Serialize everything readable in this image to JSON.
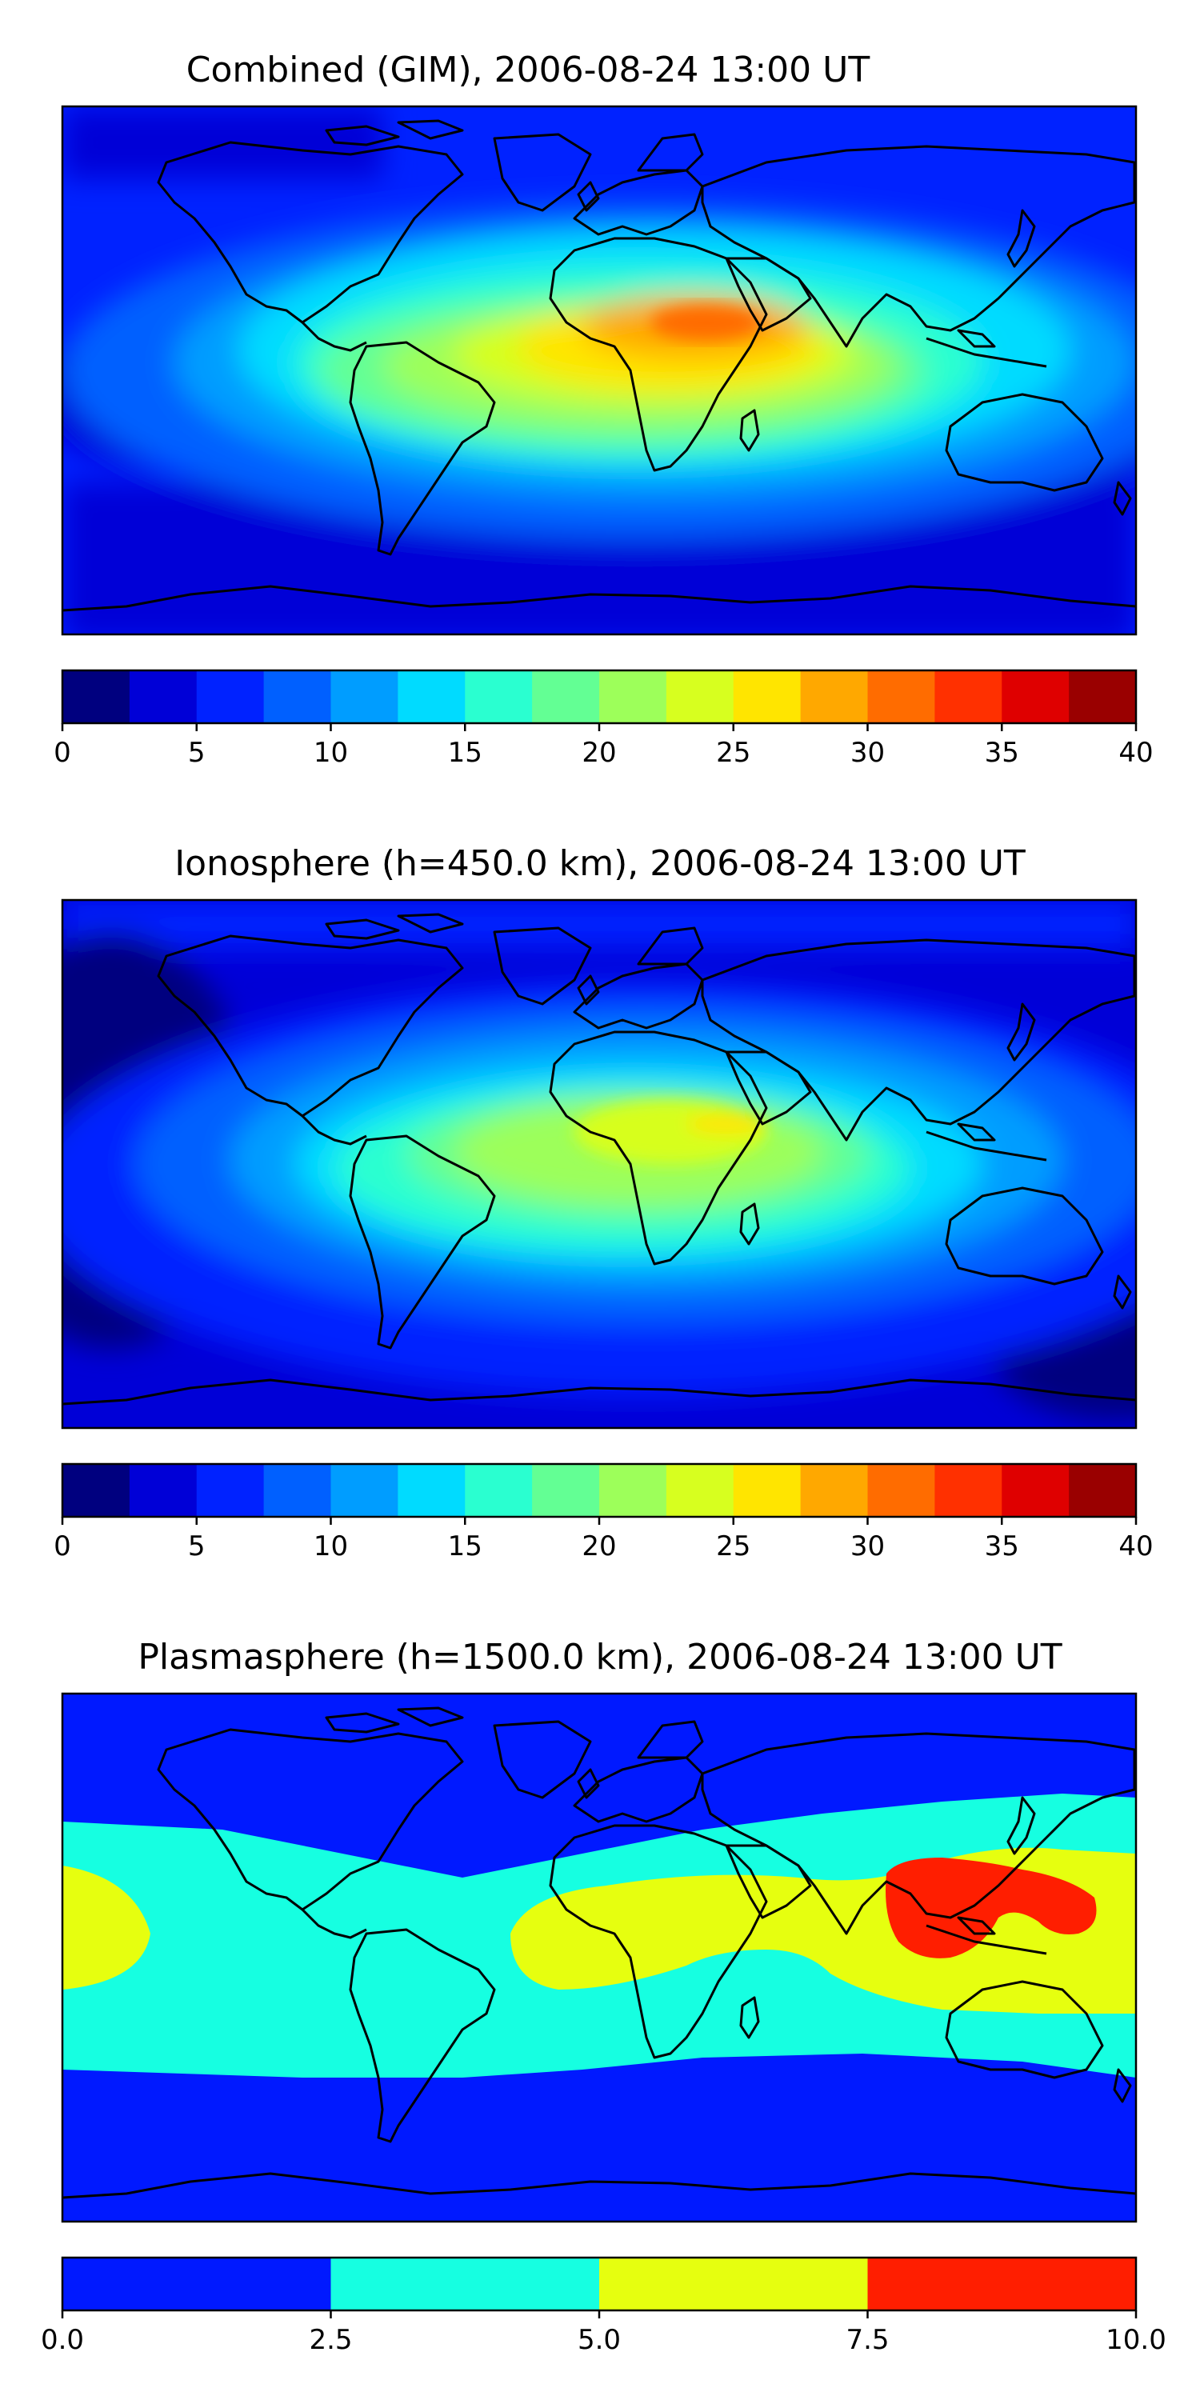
{
  "panels": [
    {
      "title": "Combined (GIM), 2006-08-24 13:00 UT",
      "colorbar": {
        "levels": [
          0,
          2.5,
          5,
          7.5,
          10,
          12.5,
          15,
          17.5,
          20,
          22.5,
          25,
          27.5,
          30,
          32.5,
          35,
          37.5,
          40
        ],
        "colors": [
          "#00007f",
          "#0000d7",
          "#0022ff",
          "#0060ff",
          "#009dff",
          "#00dbff",
          "#2affd0",
          "#63ff94",
          "#9dff5a",
          "#d7ff1f",
          "#ffe500",
          "#ffa800",
          "#ff6c00",
          "#ff3000",
          "#df0000",
          "#9a0000"
        ],
        "tick_values": [
          0,
          5,
          10,
          15,
          20,
          25,
          30,
          35,
          40
        ],
        "tick_labels": [
          "0",
          "5",
          "10",
          "15",
          "20",
          "25",
          "30",
          "35",
          "40"
        ]
      }
    },
    {
      "title": "Ionosphere  (h=450.0 km), 2006-08-24 13:00 UT",
      "colorbar": {
        "levels": [
          0,
          2.5,
          5,
          7.5,
          10,
          12.5,
          15,
          17.5,
          20,
          22.5,
          25,
          27.5,
          30,
          32.5,
          35,
          37.5,
          40
        ],
        "colors": [
          "#00007f",
          "#0000d7",
          "#0022ff",
          "#0060ff",
          "#009dff",
          "#00dbff",
          "#2affd0",
          "#63ff94",
          "#9dff5a",
          "#d7ff1f",
          "#ffe500",
          "#ffa800",
          "#ff6c00",
          "#ff3000",
          "#df0000",
          "#9a0000"
        ],
        "tick_values": [
          0,
          5,
          10,
          15,
          20,
          25,
          30,
          35,
          40
        ],
        "tick_labels": [
          "0",
          "5",
          "10",
          "15",
          "20",
          "25",
          "30",
          "35",
          "40"
        ]
      }
    },
    {
      "title": "Plasmasphere (h=1500.0 km), 2006-08-24 13:00 UT",
      "colorbar": {
        "levels": [
          0.0,
          2.5,
          5.0,
          7.5,
          10.0
        ],
        "colors": [
          "#0019ff",
          "#16ffe1",
          "#e6ff0f",
          "#ff1e00"
        ],
        "tick_values": [
          0.0,
          2.5,
          5.0,
          7.5,
          10.0
        ],
        "tick_labels": [
          "0.0",
          "2.5",
          "5.0",
          "7.5",
          "10.0"
        ]
      }
    }
  ]
}
